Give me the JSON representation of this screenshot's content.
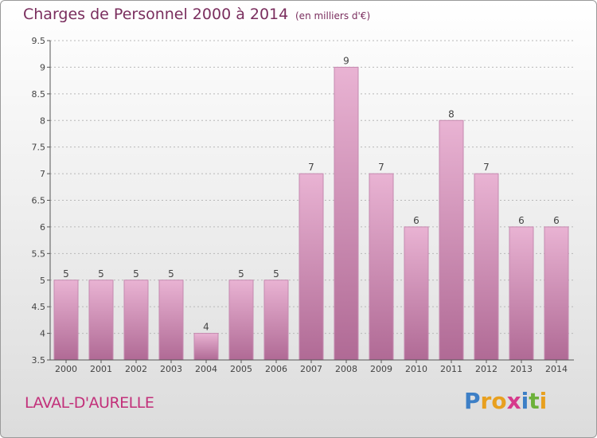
{
  "title": "Charges de Personnel 2000 à 2014",
  "subtitle": "(en milliers d'€)",
  "commune": "LAVAL-D'AURELLE",
  "logo": {
    "text": "Proxiti",
    "letters": [
      {
        "char": "P",
        "color": "#3d7fc6"
      },
      {
        "char": "r",
        "color": "#e8a01f"
      },
      {
        "char": "o",
        "color": "#e8a01f"
      },
      {
        "char": "x",
        "color": "#d63a8c"
      },
      {
        "char": "i",
        "color": "#3d7fc6"
      },
      {
        "char": "t",
        "color": "#6db13a"
      },
      {
        "char": "i",
        "color": "#e8a01f"
      }
    ]
  },
  "colors": {
    "bar_light": "#e9b3d3",
    "bar_dark": "#b06a95",
    "axis": "#555555",
    "grid": "#b8b8b8",
    "text": "#444444"
  },
  "chart_data": {
    "type": "bar",
    "categories": [
      "2000",
      "2001",
      "2002",
      "2003",
      "2004",
      "2005",
      "2006",
      "2007",
      "2008",
      "2009",
      "2010",
      "2011",
      "2012",
      "2013",
      "2014"
    ],
    "values": [
      5,
      5,
      5,
      5,
      4,
      5,
      5,
      7,
      9,
      7,
      6,
      8,
      7,
      6,
      6
    ],
    "data_labels": [
      "5",
      "5",
      "5",
      "5",
      "4",
      "5",
      "5",
      "7",
      "9",
      "7",
      "6",
      "8",
      "7",
      "6",
      "6"
    ],
    "ylim": [
      3.5,
      9.5
    ],
    "yticks": [
      3.5,
      4,
      4.5,
      5,
      5.5,
      6,
      6.5,
      7,
      7.5,
      8,
      8.5,
      9,
      9.5
    ],
    "ytick_labels": [
      "3.5",
      "4",
      "4.5",
      "5",
      "5.5",
      "6",
      "6.5",
      "7",
      "7.5",
      "8",
      "8.5",
      "9",
      "9.5"
    ],
    "grid": true,
    "xlabel": "",
    "ylabel": ""
  }
}
